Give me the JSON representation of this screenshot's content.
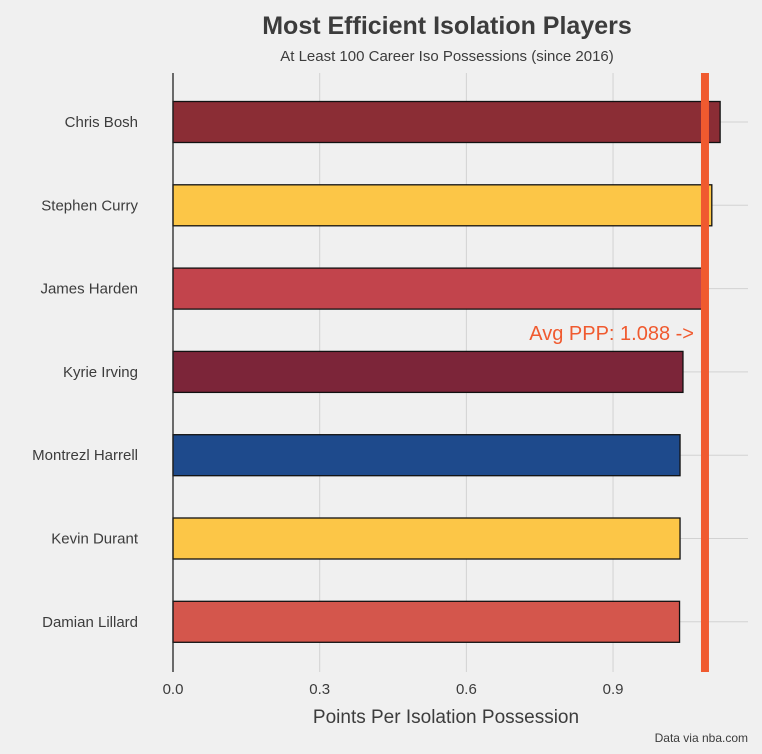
{
  "chart_data": {
    "type": "bar",
    "orientation": "horizontal",
    "title": "Most Efficient Isolation Players",
    "subtitle": "At Least 100 Career Iso Possessions (since 2016)",
    "xlabel": "Points Per Isolation Possession",
    "ylabel": "",
    "caption": "Data via nba.com",
    "categories": [
      "Chris Bosh",
      "Stephen Curry",
      "James Harden",
      "Kyrie Irving",
      "Montrezl Harrell",
      "Kevin Durant",
      "Damian Lillard"
    ],
    "values": [
      1.119,
      1.102,
      1.09,
      1.043,
      1.037,
      1.037,
      1.036
    ],
    "colors": [
      "#8b2d35",
      "#fcc647",
      "#c2444c",
      "#7c2539",
      "#1e4a8c",
      "#fcc647",
      "#d4564c"
    ],
    "xlim": [
      0,
      1.176
    ],
    "xticks": [
      0,
      0.3,
      0.6,
      0.9
    ],
    "xtick_labels": [
      "0.0",
      "0.3",
      "0.6",
      "0.9"
    ],
    "grid": true,
    "reference_line": {
      "value": 1.088,
      "color": "#f05a2f",
      "label": "Avg PPP: 1.088 ->"
    }
  }
}
